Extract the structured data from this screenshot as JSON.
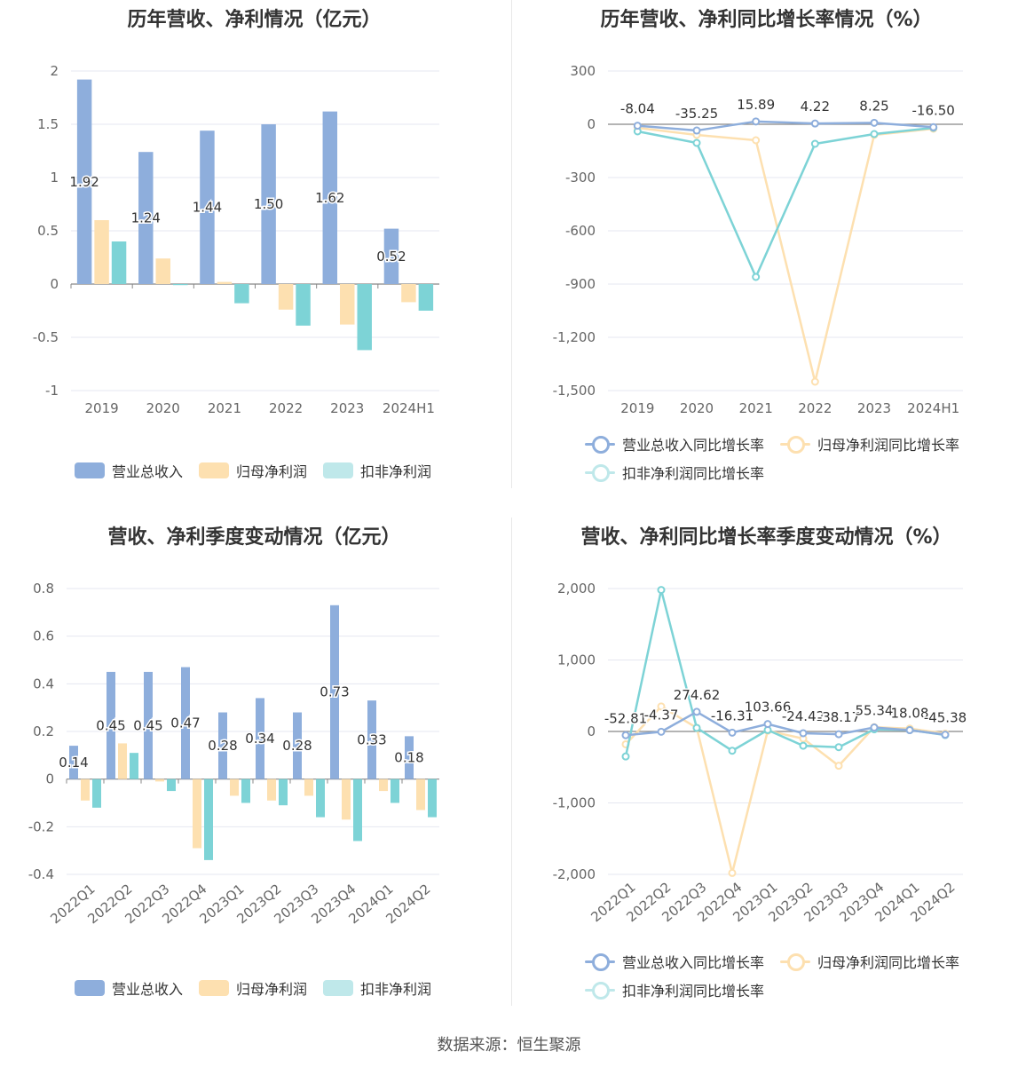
{
  "source": "数据来源：恒生聚源",
  "colors": {
    "revenue": "#8eaedc",
    "netProfit": "#fde0b0",
    "deducted": "#7dd3d6",
    "grid": "#e5e7f0",
    "axis": "#666666",
    "label": "#333333"
  },
  "charts": {
    "annual_bar": {
      "title": "历年营收、净利情况（亿元）"
    },
    "annual_line": {
      "title": "历年营收、净利同比增长率情况（%）"
    },
    "quarter_bar": {
      "title": "营收、净利季度变动情况（亿元）"
    },
    "quarter_line": {
      "title": "营收、净利同比增长率季度变动情况（%）"
    }
  },
  "legend": {
    "revenue": "营业总收入",
    "netProfit": "归母净利润",
    "deducted": "扣非净利润",
    "revenueGrowth": "营业总收入同比增长率",
    "netProfitGrowth": "归母净利润同比增长率",
    "deductedGrowth": "扣非净利润同比增长率"
  },
  "chart_data": [
    {
      "type": "bar",
      "title": "历年营收、净利情况（亿元）",
      "categories": [
        "2019",
        "2020",
        "2021",
        "2022",
        "2023",
        "2024H1"
      ],
      "ylim": [
        -1,
        2
      ],
      "yticks": [
        2,
        1.5,
        1,
        0.5,
        0,
        -0.5,
        -1
      ],
      "ytick_labels": [
        "2",
        "1.5",
        "1",
        "0.5",
        "0",
        "-0.5",
        "-1"
      ],
      "series": [
        {
          "name": "营业总收入",
          "values": [
            1.92,
            1.24,
            1.44,
            1.5,
            1.62,
            0.52
          ],
          "labels": [
            "1.92",
            "1.24",
            "1.44",
            "1.50",
            "1.62",
            "0.52"
          ]
        },
        {
          "name": "归母净利润",
          "values": [
            0.6,
            0.24,
            0.02,
            -0.24,
            -0.38,
            -0.17
          ]
        },
        {
          "name": "扣非净利润",
          "values": [
            0.4,
            -0.01,
            -0.18,
            -0.39,
            -0.62,
            -0.25
          ]
        }
      ],
      "legend": "bottom"
    },
    {
      "type": "line",
      "title": "历年营收、净利同比增长率情况（%）",
      "categories": [
        "2019",
        "2020",
        "2021",
        "2022",
        "2023",
        "2024H1"
      ],
      "ylim": [
        -1500,
        300
      ],
      "yticks": [
        300,
        0,
        -300,
        -600,
        -900,
        -1200,
        -1500
      ],
      "ytick_labels": [
        "300",
        "0",
        "-300",
        "-600",
        "-900",
        "-1,200",
        "-1,500"
      ],
      "series": [
        {
          "name": "营业总收入同比增长率",
          "values": [
            -8.04,
            -35.25,
            15.89,
            4.22,
            8.25,
            -16.5
          ],
          "labels": [
            "-8.04",
            "-35.25",
            "15.89",
            "4.22",
            "8.25",
            "-16.50"
          ]
        },
        {
          "name": "归母净利润同比增长率",
          "values": [
            -20,
            -60,
            -90,
            -1450,
            -60,
            -25
          ]
        },
        {
          "name": "扣非净利润同比增长率",
          "values": [
            -40,
            -105,
            -860,
            -110,
            -55,
            -20
          ]
        }
      ],
      "legend": "bottom"
    },
    {
      "type": "bar",
      "title": "营收、净利季度变动情况（亿元）",
      "categories": [
        "2022Q1",
        "2022Q2",
        "2022Q3",
        "2022Q4",
        "2023Q1",
        "2023Q2",
        "2023Q3",
        "2023Q4",
        "2024Q1",
        "2024Q2"
      ],
      "ylim": [
        -0.4,
        0.8
      ],
      "yticks": [
        0.8,
        0.6,
        0.4,
        0.2,
        0,
        -0.2,
        -0.4
      ],
      "ytick_labels": [
        "0.8",
        "0.6",
        "0.4",
        "0.2",
        "0",
        "-0.2",
        "-0.4"
      ],
      "series": [
        {
          "name": "营业总收入",
          "values": [
            0.14,
            0.45,
            0.45,
            0.47,
            0.28,
            0.34,
            0.28,
            0.73,
            0.33,
            0.18
          ],
          "labels": [
            "0.14",
            "0.45",
            "0.45",
            "0.47",
            "0.28",
            "0.34",
            "0.28",
            "0.73",
            "0.33",
            "0.18"
          ]
        },
        {
          "name": "归母净利润",
          "values": [
            -0.09,
            0.15,
            -0.01,
            -0.29,
            -0.07,
            -0.09,
            -0.07,
            -0.17,
            -0.05,
            -0.13
          ]
        },
        {
          "name": "扣非净利润",
          "values": [
            -0.12,
            0.11,
            -0.05,
            -0.34,
            -0.1,
            -0.11,
            -0.16,
            -0.26,
            -0.1,
            -0.16
          ]
        }
      ],
      "legend": "bottom"
    },
    {
      "type": "line",
      "title": "营收、净利同比增长率季度变动情况（%）",
      "categories": [
        "2022Q1",
        "2022Q2",
        "2022Q3",
        "2022Q4",
        "2023Q1",
        "2023Q2",
        "2023Q3",
        "2023Q4",
        "2024Q1",
        "2024Q2"
      ],
      "ylim": [
        -2000,
        2000
      ],
      "yticks": [
        2000,
        1000,
        0,
        -1000,
        -2000
      ],
      "ytick_labels": [
        "2,000",
        "1,000",
        "0",
        "-1,000",
        "-2,000"
      ],
      "series": [
        {
          "name": "营业总收入同比增长率",
          "values": [
            -52.81,
            -4.37,
            274.62,
            -16.31,
            103.66,
            -24.42,
            -38.17,
            55.34,
            18.08,
            -45.38
          ],
          "labels": [
            "-52.81",
            "-4.37",
            "274.62",
            "-16.31",
            "103.66",
            "-24.42",
            "-38.17",
            "55.34",
            "18.08",
            "-45.38"
          ]
        },
        {
          "name": "归母净利润同比增长率",
          "values": [
            -180,
            350,
            50,
            -1980,
            10,
            -100,
            -480,
            60,
            40,
            -30
          ]
        },
        {
          "name": "扣非净利润同比增长率",
          "values": [
            -350,
            1980,
            50,
            -270,
            20,
            -200,
            -220,
            30,
            20,
            -50
          ]
        }
      ],
      "legend": "bottom"
    }
  ]
}
